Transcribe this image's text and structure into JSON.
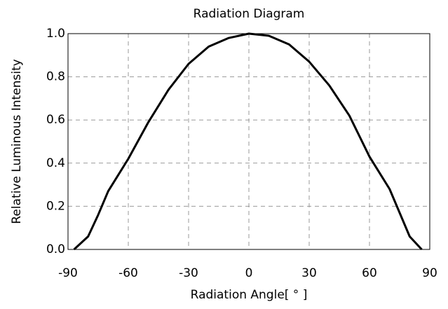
{
  "chart_data": {
    "type": "line",
    "title": "Radiation Diagram",
    "x_label": "Radiation Angle[ ° ]",
    "y_label": "Relative Luminous Intensity",
    "x": [
      -87,
      -80,
      -75,
      -70,
      -60,
      -50,
      -40,
      -30,
      -20,
      -10,
      0,
      10,
      20,
      30,
      40,
      50,
      60,
      70,
      75,
      80,
      86
    ],
    "series": [
      {
        "color": "#000000",
        "values": [
          0,
          0.06,
          0.16,
          0.27,
          0.42,
          0.59,
          0.74,
          0.86,
          0.94,
          0.98,
          1.0,
          0.99,
          0.95,
          0.87,
          0.76,
          0.62,
          0.43,
          0.28,
          0.17,
          0.06,
          0
        ]
      }
    ],
    "xlim": [
      -90,
      90
    ],
    "xticks": [
      -90,
      -60,
      -30,
      0,
      30,
      60,
      90
    ],
    "ylim": [
      0,
      1
    ],
    "yticks": [
      {
        "value": 0,
        "label": "0.0"
      },
      0.2,
      0.4,
      0.6,
      0.8,
      {
        "value": 1,
        "label": "1.0"
      }
    ],
    "grid": true
  }
}
